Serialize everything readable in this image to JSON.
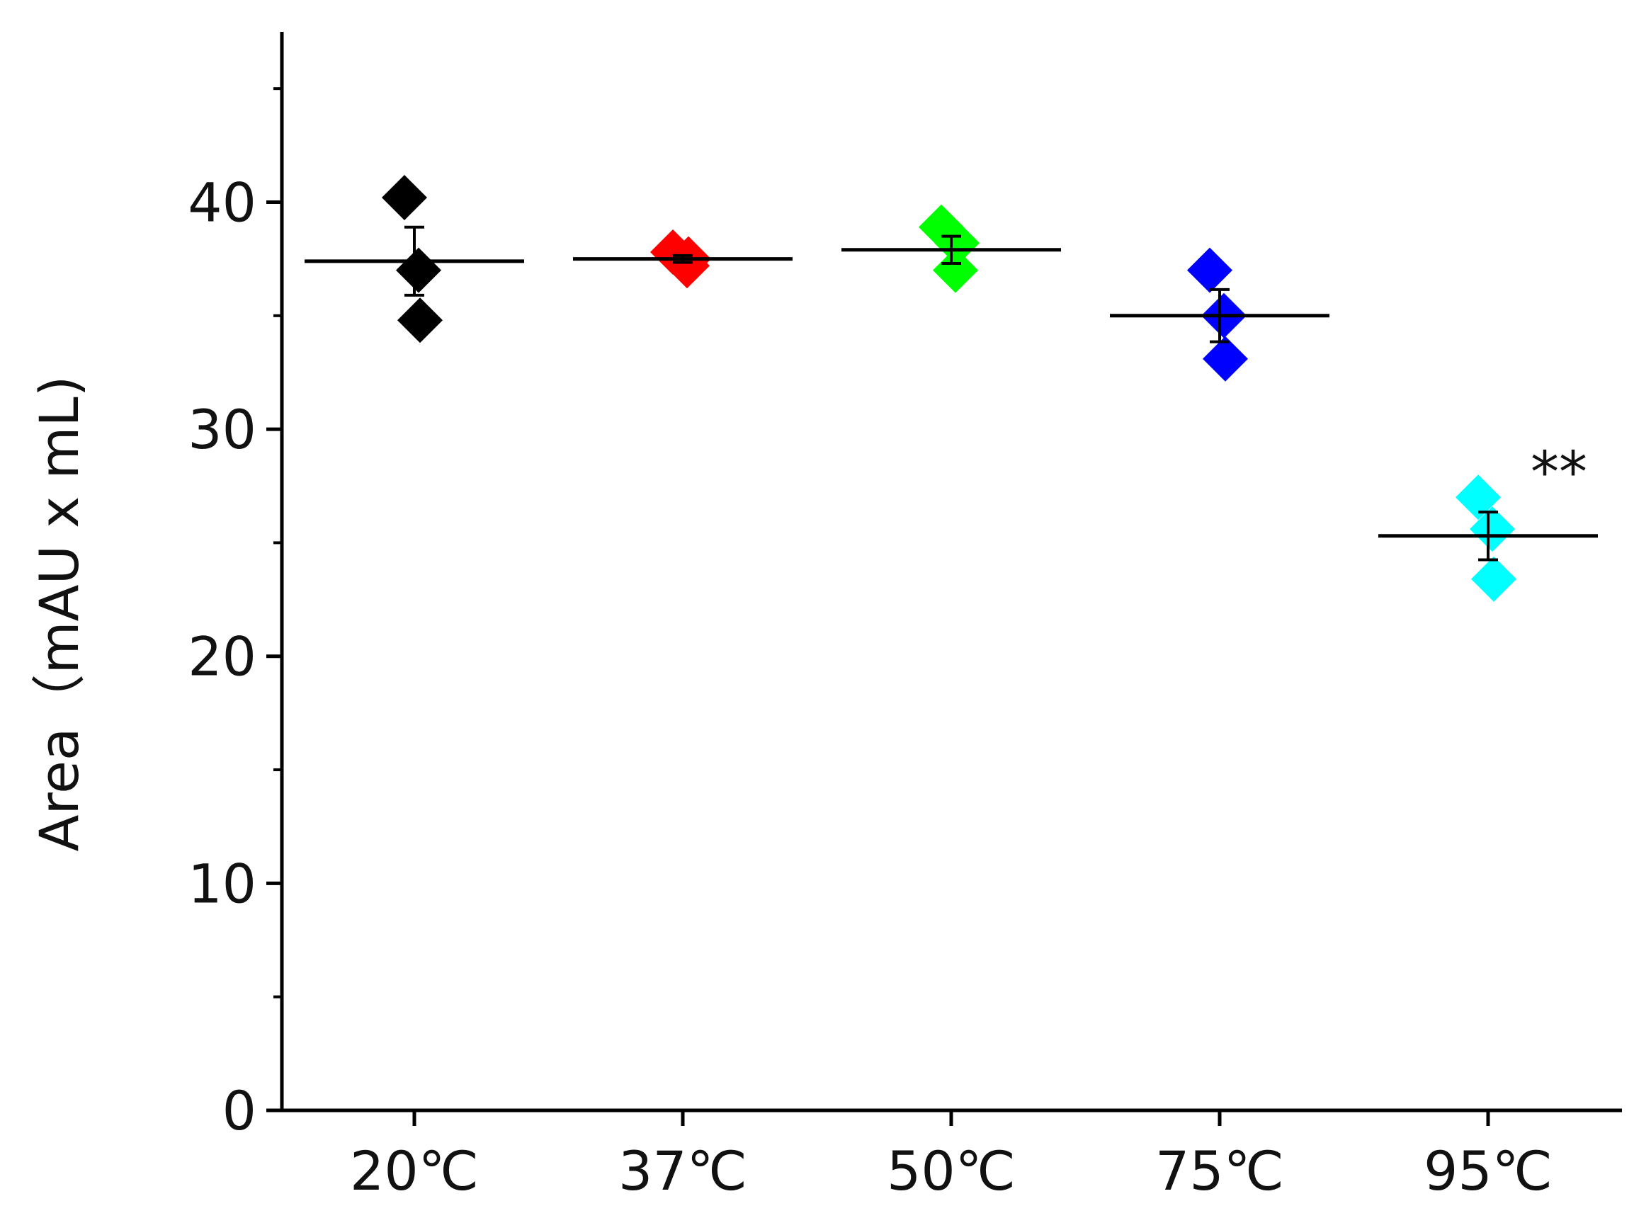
{
  "chart_data": {
    "type": "scatter",
    "title": "",
    "xlabel": "",
    "ylabel": "Area（mAU x mL)",
    "categories": [
      "20℃",
      "37℃",
      "50℃",
      "75℃",
      "95℃"
    ],
    "ylim": [
      0,
      47.5
    ],
    "yticks": [
      0,
      10,
      20,
      30,
      40
    ],
    "minor_yticks": [
      5,
      15,
      25,
      35,
      45
    ],
    "grid": false,
    "legend": "none",
    "series": [
      {
        "category": "20℃",
        "color": "#000000",
        "points": [
          40.2,
          37.0,
          34.8
        ],
        "mean": 37.4,
        "error": 1.5
      },
      {
        "category": "37℃",
        "color": "#ff0000",
        "points": [
          37.8,
          37.2,
          37.5
        ],
        "mean": 37.5,
        "error": 0.15
      },
      {
        "category": "50℃",
        "color": "#00ff00",
        "points": [
          38.9,
          37.0,
          38.2
        ],
        "mean": 37.9,
        "error": 0.6
      },
      {
        "category": "75℃",
        "color": "#0000ff",
        "points": [
          37.0,
          35.0,
          33.1
        ],
        "mean": 35.0,
        "error": 1.15
      },
      {
        "category": "95℃",
        "color": "#00ffff",
        "points": [
          27.0,
          25.6,
          23.4
        ],
        "mean": 25.3,
        "error": 1.05
      }
    ],
    "annotations": [
      {
        "category": "95℃",
        "text": "**",
        "y": 28.8
      }
    ]
  }
}
